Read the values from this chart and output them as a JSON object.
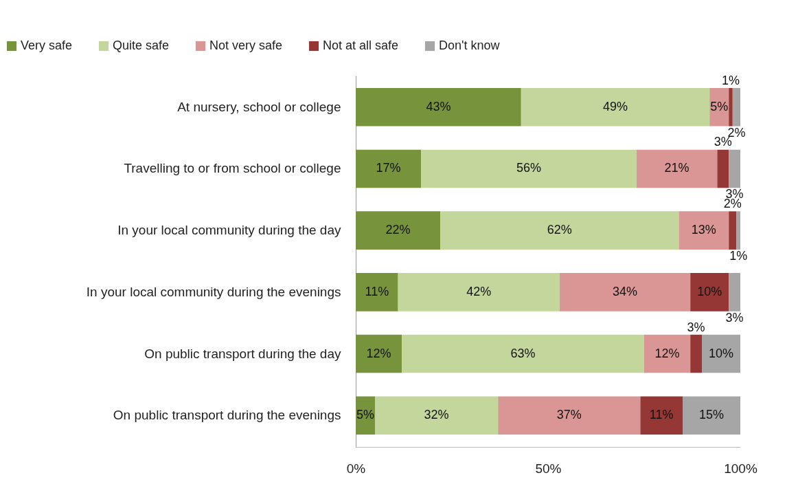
{
  "chart_data": {
    "type": "bar",
    "orientation": "horizontal",
    "stacked": true,
    "legend": "top",
    "grid": false,
    "categories": [
      "At nursery, school or college",
      "Travelling to or from school or college",
      "In your local community during the day",
      "In your local community during the evenings",
      "On public transport during the day",
      "On public transport during the evenings"
    ],
    "xlim": [
      0,
      100
    ],
    "xticks": [
      {
        "value": 0,
        "label": "0%"
      },
      {
        "value": 50,
        "label": "50%"
      },
      {
        "value": 100,
        "label": "100%"
      }
    ],
    "series": [
      {
        "name": "Very safe",
        "color": "#77933c",
        "values": [
          43,
          17,
          22,
          11,
          12,
          5
        ],
        "value_labels": [
          "43%",
          "17%",
          "22%",
          "11%",
          "12%",
          "5%"
        ]
      },
      {
        "name": "Quite safe",
        "color": "#c3d69b",
        "values": [
          49,
          56,
          62,
          42,
          63,
          32
        ],
        "value_labels": [
          "49%",
          "56%",
          "62%",
          "42%",
          "63%",
          "32%"
        ]
      },
      {
        "name": "Not very safe",
        "color": "#d99694",
        "values": [
          5,
          21,
          13,
          34,
          12,
          37
        ],
        "value_labels": [
          "5%",
          "21%",
          "13%",
          "34%",
          "12%",
          "37%"
        ]
      },
      {
        "name": "Not at all safe",
        "color": "#953735",
        "values": [
          1,
          3,
          2,
          10,
          3,
          11
        ],
        "value_labels": [
          "1%",
          "3%",
          "2%",
          "10%",
          "3%",
          "11%"
        ]
      },
      {
        "name": "Don't know",
        "color": "#a6a6a6",
        "values": [
          2,
          3,
          1,
          3,
          10,
          15
        ],
        "value_labels": [
          "2%",
          "3%",
          "1%",
          "3%",
          "10%",
          "15%"
        ]
      }
    ]
  }
}
